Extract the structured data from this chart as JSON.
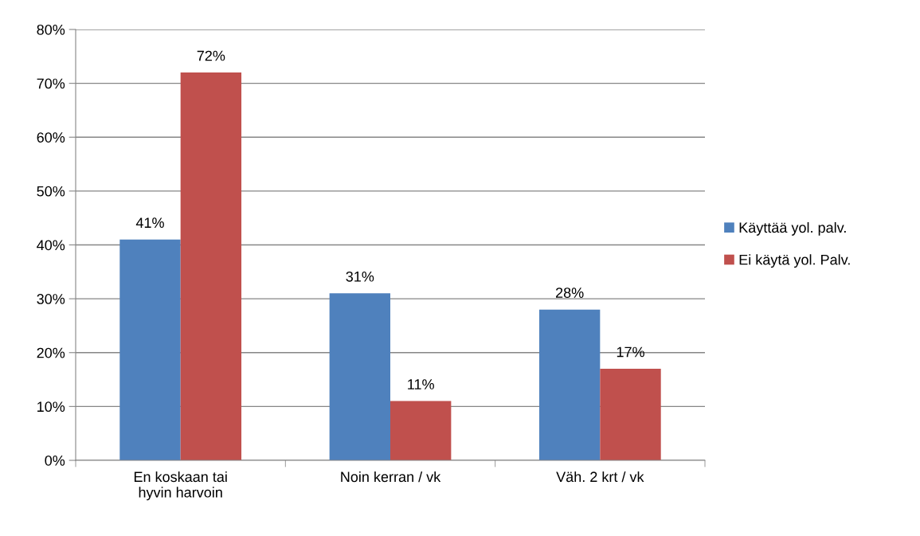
{
  "chart_data": {
    "type": "bar",
    "categories": [
      "En koskaan tai hyvin harvoin",
      "Noin kerran / vk",
      "Väh. 2 krt / vk"
    ],
    "series": [
      {
        "name": "Käyttää yol. palv.",
        "color": "#4f81bd",
        "values": [
          41,
          31,
          28
        ],
        "value_labels": [
          "41%",
          "31%",
          "28%"
        ]
      },
      {
        "name": "Ei käytä yol. Palv.",
        "color": "#c0504d",
        "values": [
          72,
          11,
          17
        ],
        "value_labels": [
          "72%",
          "11%",
          "17%"
        ]
      }
    ],
    "ylim": [
      0,
      80
    ],
    "yticks": [
      {
        "value": 0,
        "label": "0%"
      },
      {
        "value": 10,
        "label": "10%"
      },
      {
        "value": 20,
        "label": "20%"
      },
      {
        "value": 30,
        "label": "30%"
      },
      {
        "value": 40,
        "label": "40%"
      },
      {
        "value": 50,
        "label": "50%"
      },
      {
        "value": 60,
        "label": "60%"
      },
      {
        "value": 70,
        "label": "70%"
      },
      {
        "value": 80,
        "label": "80%"
      }
    ],
    "grid": "y",
    "legend": "right"
  }
}
